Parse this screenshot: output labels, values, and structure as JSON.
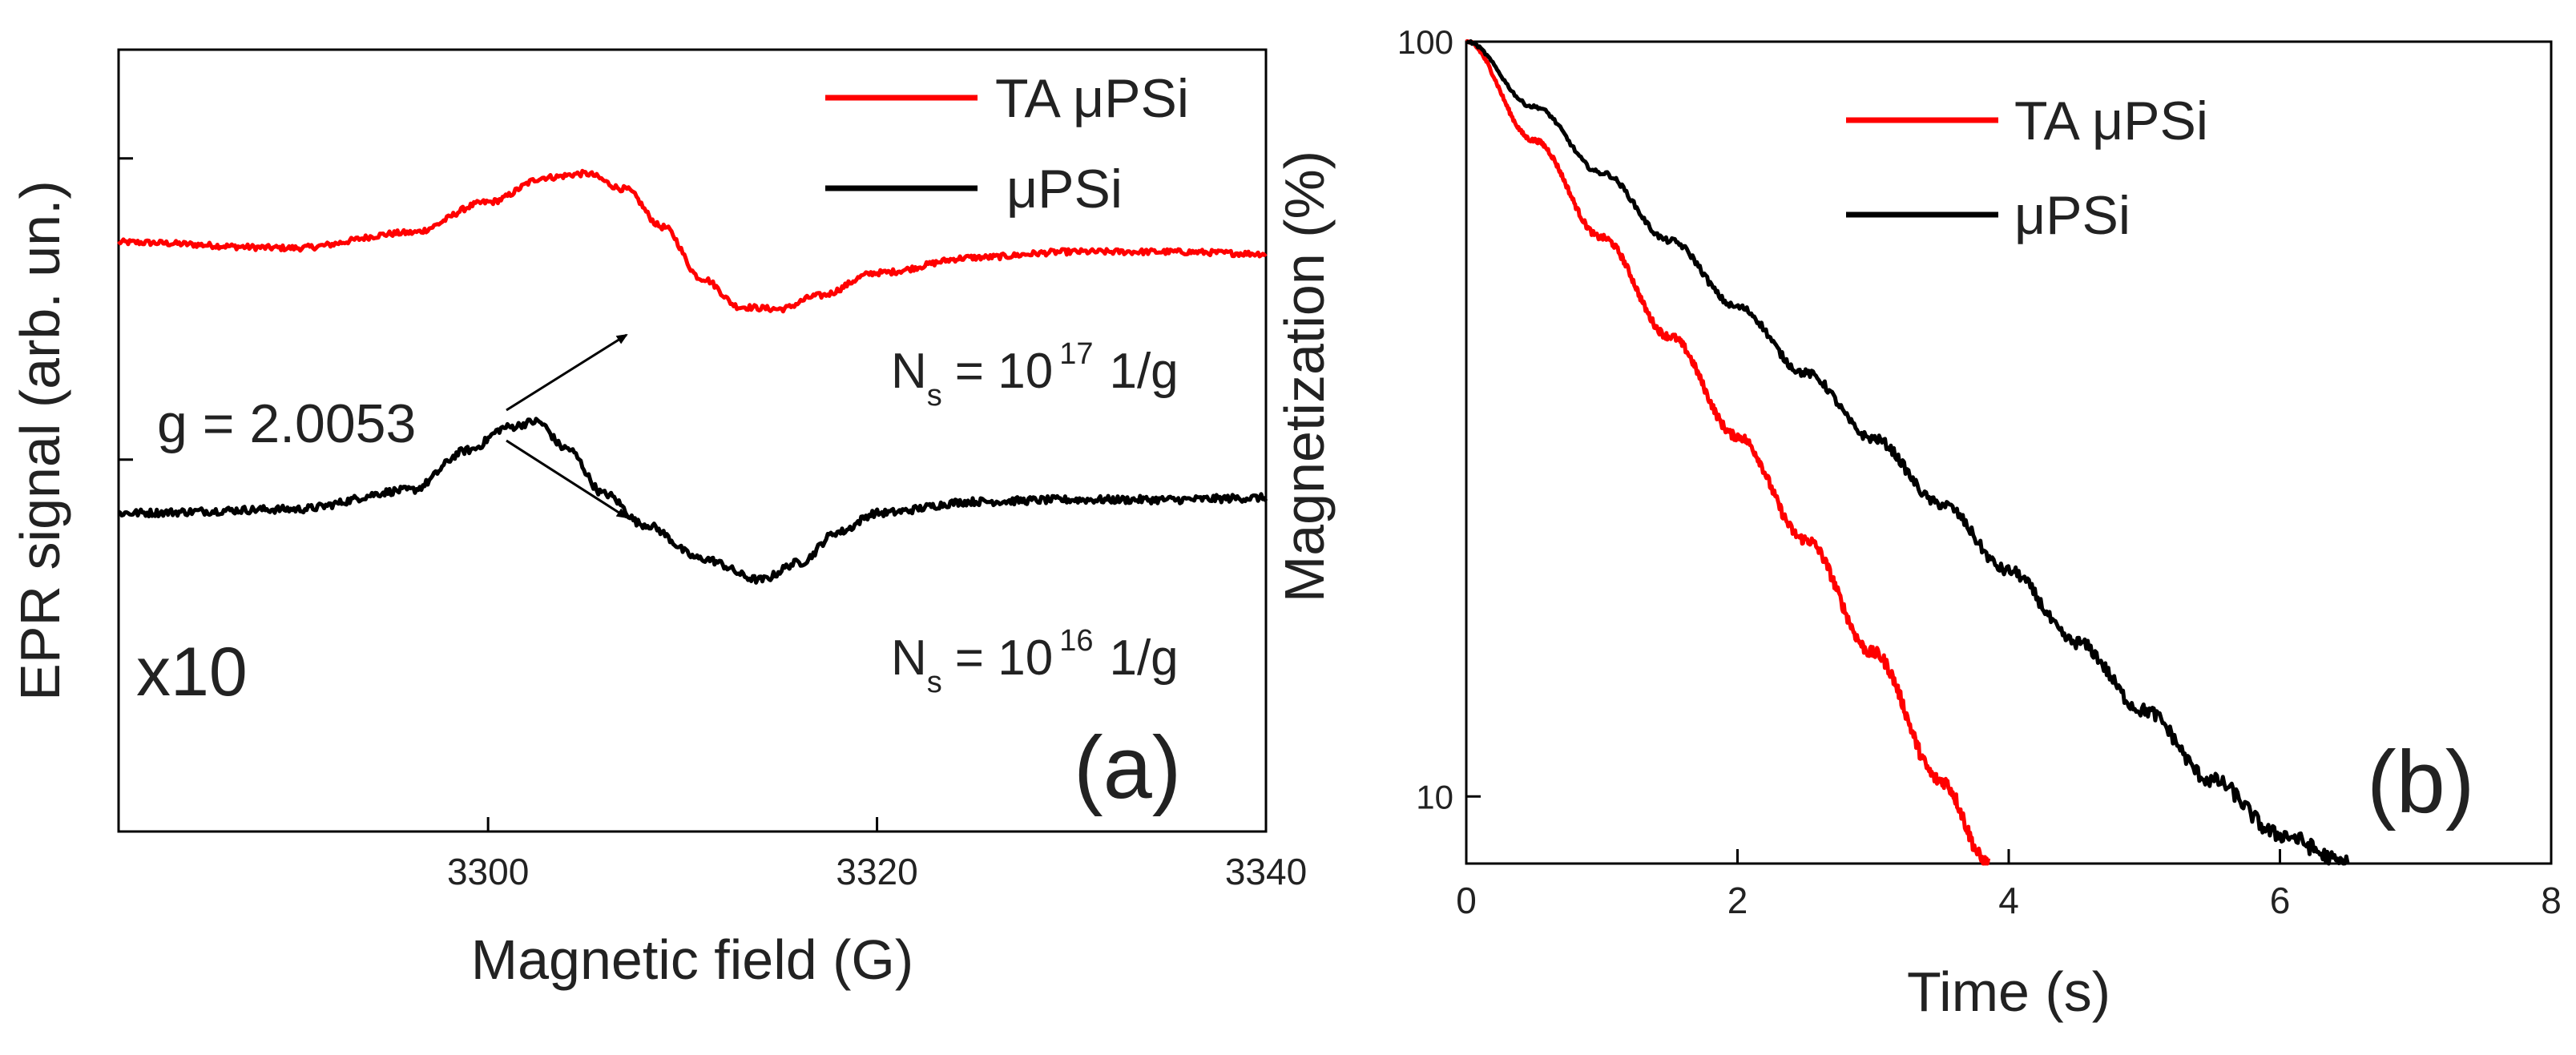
{
  "figure_labels": {
    "a": "(a)",
    "b": "(b)"
  },
  "chart_data": [
    {
      "type": "line",
      "panel": "a",
      "xlabel": "Magnetic field (G)",
      "ylabel": "EPR signal (arb. un.)",
      "xlim": [
        3281,
        3340
      ],
      "ylim": [
        -1.95,
        2.15
      ],
      "yticks_unlabeled": [
        1.58,
        0.0
      ],
      "xticks": [
        3300,
        3320,
        3340
      ],
      "legend_position": "top-right",
      "colors": {
        "TA μPSi": "#ff0000",
        "μPSi": "#000000"
      },
      "series": [
        {
          "name": "TA μPSi",
          "x": [
            3281,
            3290,
            3296,
            3300,
            3303,
            3305,
            3307,
            3309,
            3311,
            3313,
            3315,
            3317,
            3320,
            3325,
            3330,
            3335,
            3340
          ],
          "y": [
            1.14,
            1.11,
            1.19,
            1.35,
            1.48,
            1.5,
            1.42,
            1.22,
            0.95,
            0.8,
            0.79,
            0.86,
            0.98,
            1.06,
            1.09,
            1.09,
            1.08
          ],
          "noise": 0.015
        },
        {
          "name": "μPSi",
          "x": [
            3281,
            3290,
            3296,
            3299,
            3301,
            3302.5,
            3304,
            3306,
            3308,
            3311,
            3314,
            3316,
            3318,
            3320,
            3325,
            3330,
            3335,
            3340
          ],
          "y": [
            -0.28,
            -0.26,
            -0.16,
            0.05,
            0.17,
            0.2,
            0.06,
            -0.18,
            -0.34,
            -0.52,
            -0.63,
            -0.54,
            -0.38,
            -0.28,
            -0.22,
            -0.21,
            -0.21,
            -0.2
          ],
          "noise": 0.02
        }
      ],
      "annotations": [
        {
          "kind": "g",
          "text": "g = 2.0053"
        },
        {
          "kind": "scale",
          "text": "x10"
        },
        {
          "kind": "ns",
          "base": "N",
          "sub": "s",
          "eq": "= 10",
          "exp": "17",
          "unit": "1/g"
        },
        {
          "kind": "ns",
          "base": "N",
          "sub": "s",
          "eq": "= 10",
          "exp": "16",
          "unit": "1/g"
        }
      ]
    },
    {
      "type": "line",
      "panel": "b",
      "yscale": "log",
      "xlabel": "Time (s)",
      "ylabel": "Magnetization (%)",
      "xlim": [
        0,
        8
      ],
      "ylim": [
        8.15,
        100
      ],
      "xticks": [
        0,
        2,
        4,
        6,
        8
      ],
      "yticks": [
        10,
        100
      ],
      "legend_position": "top-right",
      "colors": {
        "TA μPSi": "#ff0000",
        "μPSi": "#000000"
      },
      "series": [
        {
          "name": "TA μPSi",
          "x": [
            0,
            0.5,
            1.0,
            1.5,
            2.0,
            2.5,
            3.0,
            3.5,
            3.85
          ],
          "y": [
            100,
            74,
            55,
            40.7,
            30,
            21.9,
            15.5,
            10.5,
            8.15
          ],
          "noise": 0.004
        },
        {
          "name": "μPSi",
          "x": [
            0,
            0.5,
            1.0,
            1.5,
            2.0,
            2.5,
            3.0,
            3.5,
            4.0,
            4.5,
            5.0,
            5.5,
            6.0,
            6.5
          ],
          "y": [
            100,
            82,
            67,
            54.5,
            44.5,
            36.4,
            29.8,
            24.4,
            19.9,
            16.0,
            13.0,
            10.5,
            8.9,
            8.15
          ],
          "noise": 0.003
        }
      ]
    }
  ]
}
